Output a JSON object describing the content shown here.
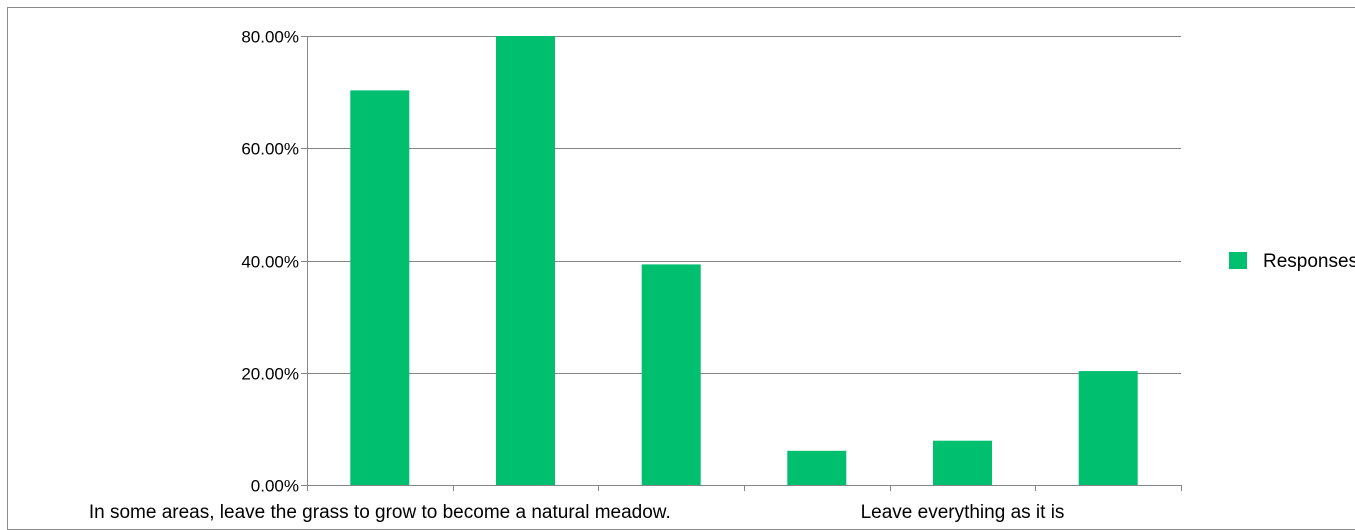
{
  "chart_data": {
    "type": "bar",
    "categories": [
      "In some areas, leave the grass to grow to become a natural meadow.",
      "",
      "",
      "",
      "Leave everything as it is",
      ""
    ],
    "visible_category_labels": [
      {
        "index": 0,
        "text": "In some areas, leave the grass to grow to become a natural meadow."
      },
      {
        "index": 4,
        "text": "Leave everything as it is"
      }
    ],
    "series": [
      {
        "name": "Responses",
        "values": [
          70.3,
          80.0,
          39.3,
          6.1,
          7.9,
          20.3
        ],
        "color": "#00bf6f"
      }
    ],
    "yticks": [
      "0.00%",
      "20.00%",
      "40.00%",
      "60.00%",
      "80.00%"
    ],
    "ylim": [
      0,
      80
    ],
    "grid": true,
    "legend": {
      "placement": "right",
      "label": "Responses",
      "color": "#00bf6f"
    },
    "title": "",
    "xlabel": "",
    "ylabel": ""
  }
}
